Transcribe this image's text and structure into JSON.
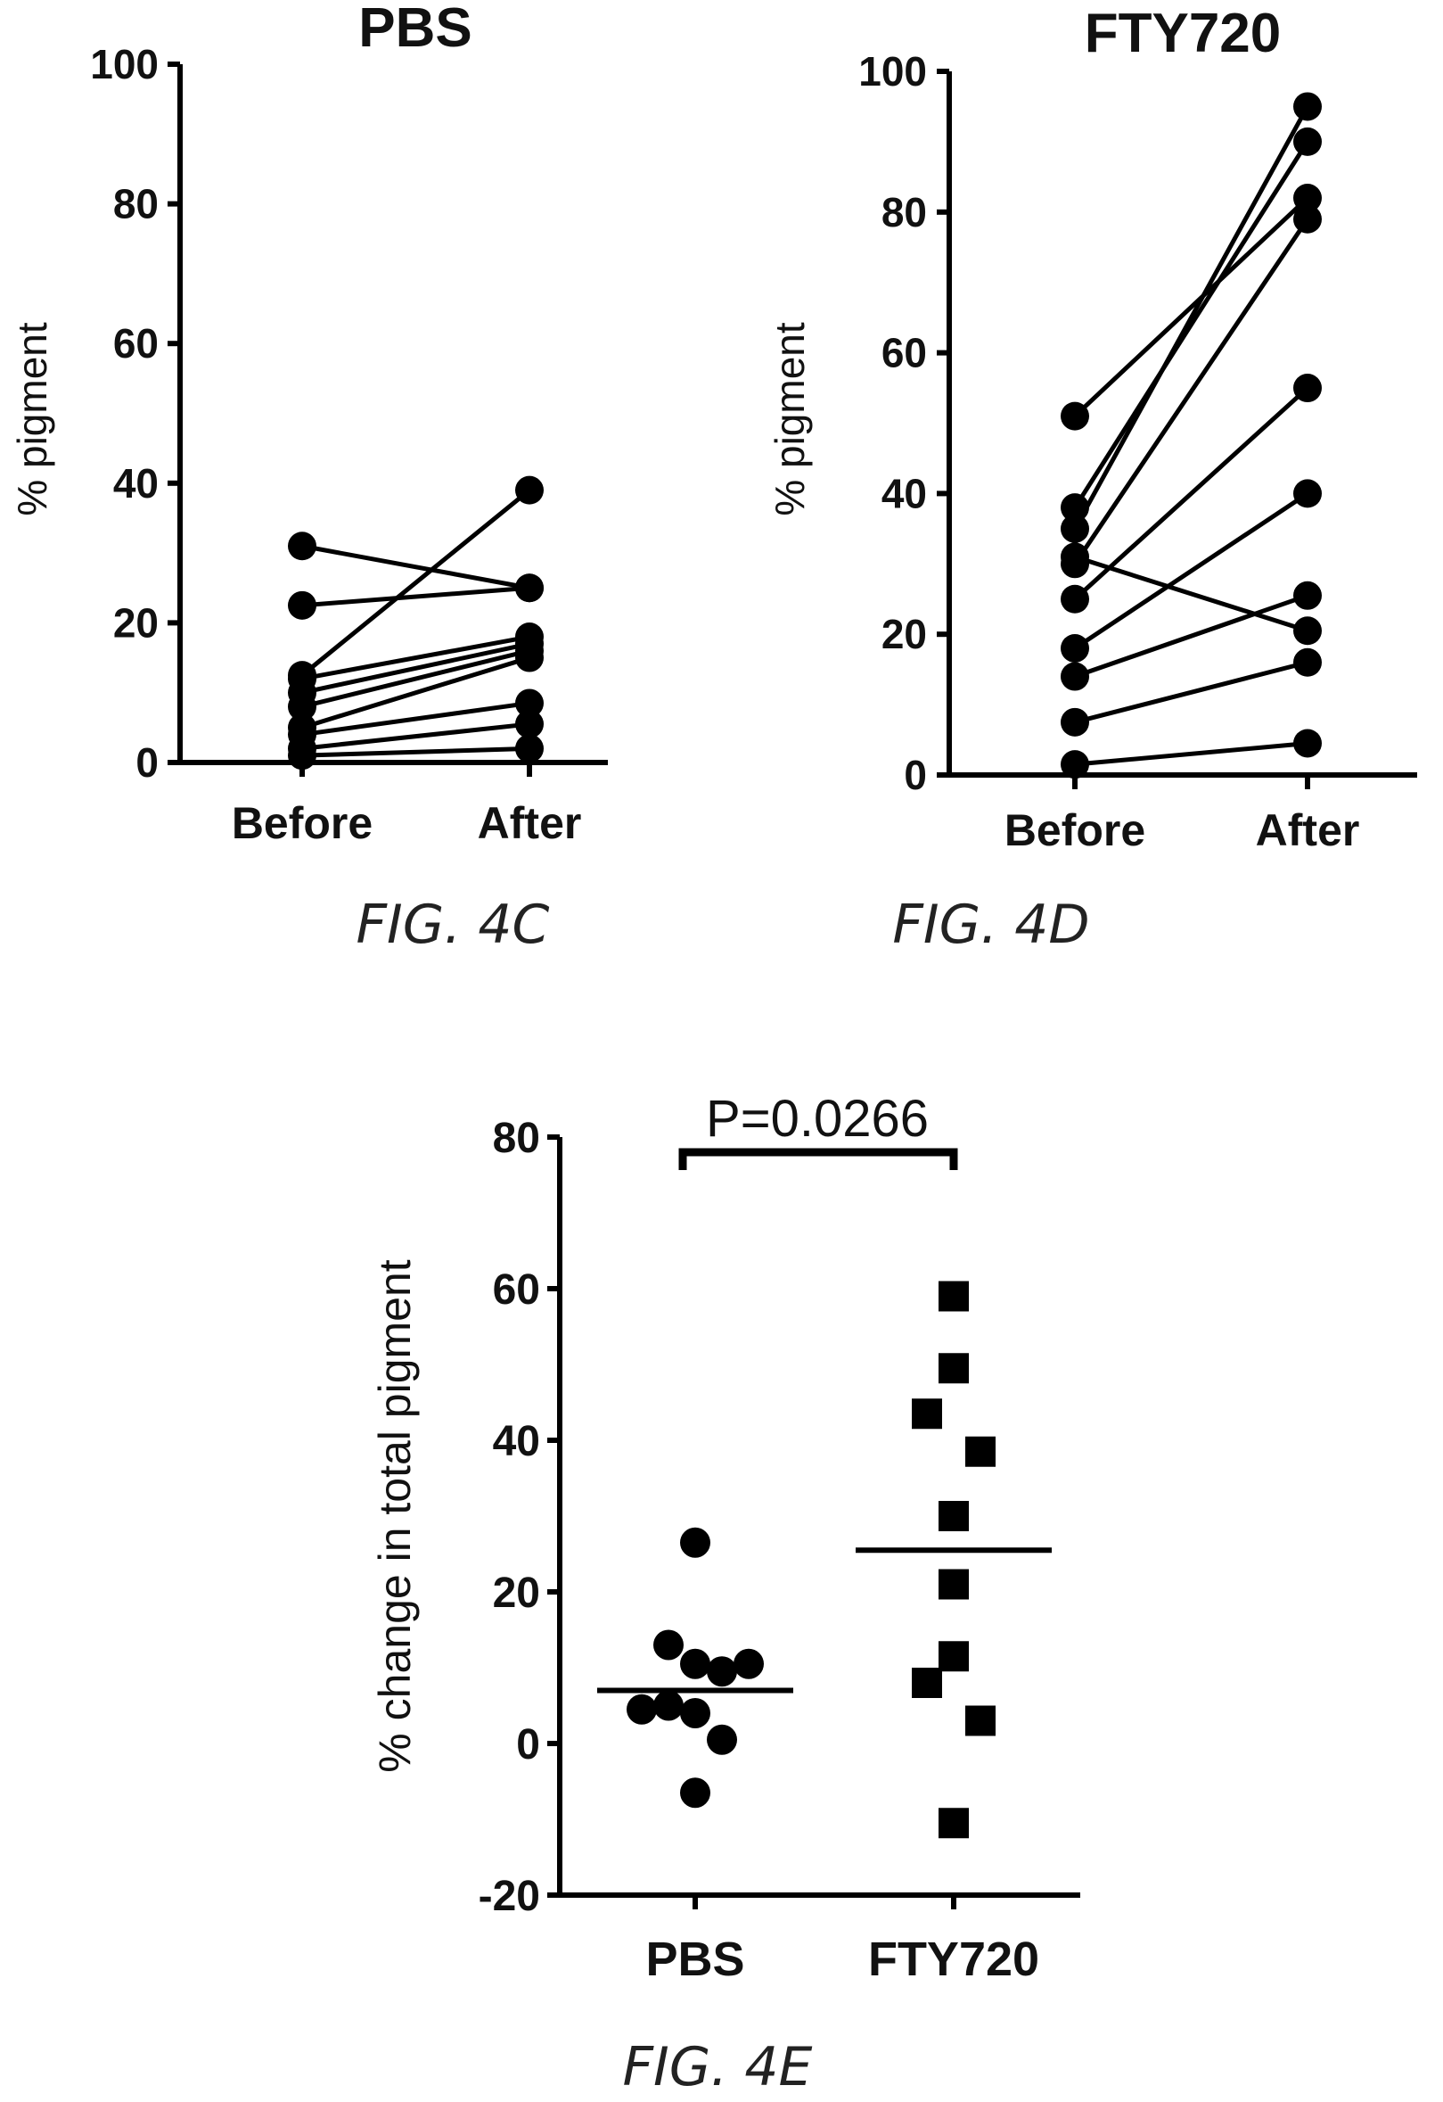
{
  "figures": {
    "c": {
      "caption": "FIG. 4C"
    },
    "d": {
      "caption": "FIG. 4D"
    },
    "e": {
      "caption": "FIG. 4E"
    }
  },
  "chart_data": [
    {
      "id": "c",
      "type": "line",
      "title": "PBS",
      "xlabel": "",
      "ylabel": "% pigment",
      "categories": [
        "Before",
        "After"
      ],
      "ylim": [
        0,
        100
      ],
      "yticks": [
        "0",
        "20",
        "40",
        "60",
        "80",
        "100"
      ],
      "series": [
        {
          "values": [
            31,
            25
          ]
        },
        {
          "values": [
            22.5,
            25
          ]
        },
        {
          "values": [
            12.5,
            39
          ]
        },
        {
          "values": [
            12,
            18
          ]
        },
        {
          "values": [
            10,
            17
          ]
        },
        {
          "values": [
            8,
            16
          ]
        },
        {
          "values": [
            5,
            15
          ]
        },
        {
          "values": [
            4,
            8.5
          ]
        },
        {
          "values": [
            2,
            5.5
          ]
        },
        {
          "values": [
            1,
            2
          ]
        }
      ]
    },
    {
      "id": "d",
      "type": "line",
      "title": "FTY720",
      "xlabel": "",
      "ylabel": "% pigment",
      "categories": [
        "Before",
        "After"
      ],
      "ylim": [
        0,
        100
      ],
      "yticks": [
        "0",
        "20",
        "40",
        "60",
        "80",
        "100"
      ],
      "series": [
        {
          "values": [
            51,
            82
          ]
        },
        {
          "values": [
            38,
            90
          ]
        },
        {
          "values": [
            35,
            95
          ]
        },
        {
          "values": [
            30,
            79
          ]
        },
        {
          "values": [
            31,
            20.5
          ]
        },
        {
          "values": [
            25,
            55
          ]
        },
        {
          "values": [
            18,
            40
          ]
        },
        {
          "values": [
            14,
            25.5
          ]
        },
        {
          "values": [
            7.5,
            16
          ]
        },
        {
          "values": [
            1.5,
            4.5
          ]
        }
      ]
    },
    {
      "id": "e",
      "type": "scatter",
      "title": "",
      "xlabel": "",
      "ylabel": "% change in total pigment",
      "categories": [
        "PBS",
        "FTY720"
      ],
      "ylim": [
        -20,
        80
      ],
      "yticks": [
        "-20",
        "0",
        "20",
        "40",
        "60",
        "80"
      ],
      "annotation": "P=0.0266",
      "groups": [
        {
          "name": "PBS",
          "marker": "circle",
          "values": [
            26.5,
            13,
            10.5,
            9.5,
            10.5,
            4.5,
            5,
            4,
            0.5,
            -6.5
          ],
          "offsets": [
            0,
            -1,
            0,
            1,
            2,
            -2,
            -1,
            0,
            1,
            0
          ],
          "mean": 7
        },
        {
          "name": "FTY720",
          "marker": "square",
          "values": [
            59,
            49.5,
            43.5,
            38.5,
            30,
            21,
            11.5,
            8,
            3,
            -10.5
          ],
          "offsets": [
            0,
            0,
            -1,
            1,
            0,
            0,
            0,
            -1,
            1,
            0
          ],
          "mean": 25.5
        }
      ]
    }
  ]
}
